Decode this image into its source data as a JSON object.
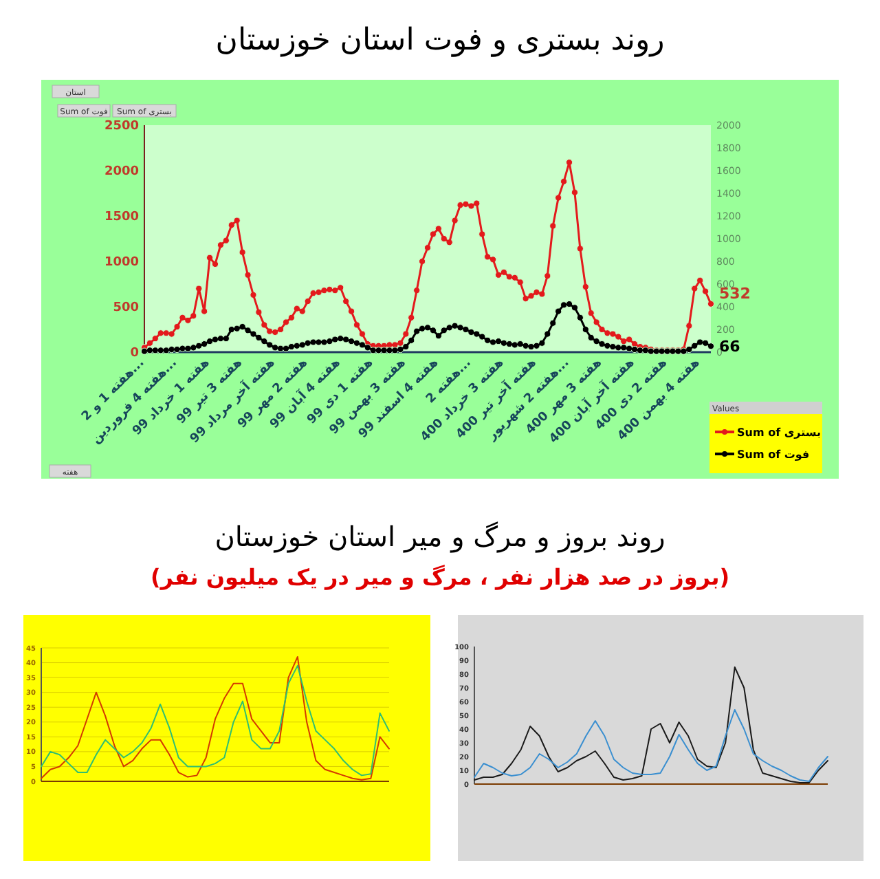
{
  "chart_data": [
    {
      "type": "line",
      "title": "روند بستری و فوت استان خوزستان",
      "categories": [
        "هفته 1 و 2...",
        null,
        null,
        null,
        null,
        null,
        "هفته 4 فروردین...",
        null,
        null,
        null,
        null,
        null,
        "هفته 1 خرداد 99",
        null,
        null,
        null,
        null,
        null,
        "هفته 3 تیر 99",
        null,
        null,
        null,
        null,
        null,
        "هفته آخر مرداد 99",
        null,
        null,
        null,
        null,
        null,
        "هفته 2 مهر 99",
        null,
        null,
        null,
        null,
        null,
        "هفته 4 آبان 99",
        null,
        null,
        null,
        null,
        null,
        "هفته 1 دی 99",
        null,
        null,
        null,
        null,
        null,
        "هفته 3 بهمن 99",
        null,
        null,
        null,
        null,
        null,
        "هفته 4 اسفند 99",
        null,
        null,
        null,
        null,
        null,
        "هفته 2...",
        null,
        null,
        null,
        null,
        null,
        "هفته 3 خرداد 400",
        null,
        null,
        null,
        null,
        null,
        "هفته آخر تیر 400",
        null,
        null,
        null,
        null,
        null,
        "هفته 2 شهریور...",
        null,
        null,
        null,
        null,
        null,
        "هفته 3 مهر 400",
        null,
        null,
        null,
        null,
        null,
        "هفته آخر آبان 400",
        null,
        null,
        null,
        null,
        null,
        "هفته 2 دی 400",
        null,
        null,
        null,
        null,
        null,
        "هفته 4 بهمن 400",
        null,
        null
      ],
      "series": [
        {
          "name": "Sum of بستری",
          "color": "#e31a1c",
          "values": [
            50,
            100,
            150,
            210,
            210,
            200,
            280,
            380,
            350,
            400,
            700,
            450,
            1040,
            970,
            1180,
            1230,
            1400,
            1450,
            1100,
            850,
            630,
            440,
            300,
            230,
            220,
            250,
            330,
            380,
            480,
            450,
            560,
            650,
            660,
            680,
            690,
            680,
            710,
            560,
            450,
            300,
            200,
            90,
            70,
            70,
            70,
            80,
            80,
            100,
            200,
            380,
            680,
            1000,
            1150,
            1300,
            1360,
            1250,
            1210,
            1450,
            1620,
            1630,
            1610,
            1640,
            1300,
            1050,
            1020,
            850,
            880,
            830,
            820,
            770,
            590,
            620,
            660,
            640,
            840,
            1390,
            1700,
            1880,
            2090,
            1760,
            1140,
            720,
            430,
            330,
            250,
            210,
            200,
            170,
            120,
            140,
            90,
            60,
            50,
            30,
            20,
            20,
            20,
            20,
            20,
            30,
            290,
            700,
            790,
            670,
            532
          ],
          "value_labels": [
            null,
            null,
            null,
            null,
            null,
            null,
            null,
            null,
            null,
            null,
            null,
            null,
            null,
            null,
            null,
            null,
            null,
            null,
            null,
            null,
            null,
            null,
            null,
            null,
            null,
            null,
            null,
            null,
            null,
            null,
            null,
            null,
            null,
            null,
            null,
            null,
            null,
            null,
            null,
            null,
            null,
            null,
            null,
            null,
            null,
            null,
            null,
            null,
            null,
            null,
            null,
            null,
            null,
            null,
            null,
            null,
            null,
            null,
            null,
            null,
            null,
            null,
            null,
            null,
            null,
            null,
            null,
            null,
            null,
            null,
            null,
            null,
            null,
            null,
            null,
            null,
            null,
            null,
            null,
            null,
            null,
            null,
            null,
            null,
            null,
            null,
            null,
            null,
            null,
            null,
            null,
            null,
            null,
            null,
            null,
            null,
            null,
            null,
            null,
            null,
            null,
            null,
            null,
            null,
            "532"
          ]
        },
        {
          "name": "Sum of فوت",
          "color": "#000000",
          "values": [
            10,
            20,
            20,
            20,
            20,
            30,
            30,
            40,
            40,
            50,
            70,
            90,
            120,
            140,
            150,
            150,
            250,
            260,
            280,
            240,
            200,
            160,
            120,
            80,
            50,
            40,
            40,
            60,
            70,
            80,
            100,
            110,
            110,
            110,
            120,
            140,
            150,
            140,
            120,
            100,
            80,
            50,
            20,
            20,
            20,
            20,
            20,
            30,
            60,
            130,
            230,
            260,
            270,
            240,
            180,
            240,
            270,
            290,
            270,
            250,
            220,
            200,
            170,
            130,
            110,
            120,
            100,
            90,
            80,
            90,
            70,
            60,
            70,
            100,
            200,
            320,
            450,
            520,
            530,
            490,
            380,
            250,
            160,
            120,
            90,
            70,
            60,
            50,
            50,
            40,
            30,
            20,
            20,
            10,
            10,
            10,
            10,
            10,
            10,
            10,
            30,
            70,
            110,
            100,
            66
          ],
          "value_labels": [
            null,
            null,
            null,
            null,
            null,
            null,
            null,
            null,
            null,
            null,
            null,
            null,
            null,
            null,
            null,
            null,
            null,
            null,
            null,
            null,
            null,
            null,
            null,
            null,
            null,
            null,
            null,
            null,
            null,
            null,
            null,
            null,
            null,
            null,
            null,
            null,
            null,
            null,
            null,
            null,
            null,
            null,
            null,
            null,
            null,
            null,
            null,
            null,
            null,
            null,
            null,
            null,
            null,
            null,
            null,
            null,
            null,
            null,
            null,
            null,
            null,
            null,
            null,
            null,
            null,
            null,
            null,
            null,
            null,
            null,
            null,
            null,
            null,
            null,
            null,
            null,
            null,
            null,
            null,
            null,
            null,
            null,
            null,
            null,
            null,
            null,
            null,
            null,
            null,
            null,
            null,
            null,
            null,
            null,
            null,
            null,
            null,
            null,
            null,
            null,
            null,
            null,
            null,
            null,
            "66"
          ]
        }
      ],
      "ylim": [
        0,
        2500
      ],
      "yticks": [
        0,
        500,
        1000,
        1500,
        2000,
        2500
      ],
      "y2lim": [
        0,
        2000
      ],
      "y2ticks": [
        0,
        200,
        400,
        600,
        800,
        1000,
        1200,
        1400,
        1600,
        1800,
        2000
      ],
      "legend": "bottom right",
      "legend_title": "Values",
      "marker": "circle",
      "annotations": [
        "استان",
        "Sum of فوت",
        "Sum of بستری",
        "هفته"
      ]
    },
    {
      "type": "line",
      "title": "روند بروز و مرگ و میر استان خوزستان",
      "subtitle": "(بروز در صد هزار نفر ، مرگ و میر در یک میلیون نفر)",
      "categories": [
        null,
        null,
        null,
        null,
        null,
        null,
        null,
        null,
        null,
        null,
        null,
        null,
        null,
        null,
        null,
        null,
        null,
        null,
        null,
        null,
        null,
        null,
        null,
        null,
        null,
        null,
        null,
        null,
        null,
        null,
        null,
        null,
        null,
        null,
        null,
        null,
        null,
        null,
        null
      ],
      "series": [
        {
          "color": "#d43a00",
          "values": [
            1,
            4,
            5,
            8,
            12,
            21,
            30,
            22,
            12,
            5,
            7,
            11,
            14,
            14,
            9,
            3,
            1.5,
            2,
            8,
            21,
            28,
            33,
            33,
            21,
            17,
            13,
            13,
            35,
            42,
            20,
            7,
            4,
            3,
            2,
            1,
            0.5,
            1,
            15,
            11
          ]
        },
        {
          "color": "#2fbf71",
          "values": [
            5,
            10,
            9,
            6,
            3,
            3,
            9,
            14,
            11,
            8,
            10,
            13,
            18,
            26,
            18,
            8,
            5,
            5,
            5,
            6,
            8,
            20,
            27,
            14,
            11,
            11,
            17,
            33,
            39,
            27,
            17,
            14,
            11,
            7,
            4,
            2,
            2.5,
            23,
            17
          ]
        }
      ],
      "ylim": [
        0,
        45
      ],
      "yticks": [
        0,
        5,
        10,
        15,
        20,
        25,
        30,
        35,
        40,
        45
      ],
      "grid": true
    },
    {
      "type": "line",
      "categories": [
        null,
        null,
        null,
        null,
        null,
        null,
        null,
        null,
        null,
        null,
        null,
        null,
        null,
        null,
        null,
        null,
        null,
        null,
        null,
        null,
        null,
        null,
        null,
        null,
        null,
        null,
        null,
        null,
        null,
        null,
        null,
        null,
        null,
        null,
        null,
        null,
        null,
        null,
        null
      ],
      "series": [
        {
          "color": "#1a1a1a",
          "values": [
            3,
            5,
            5,
            7,
            15,
            25,
            42,
            35,
            20,
            9,
            12,
            17,
            20,
            24,
            15,
            5,
            3,
            4,
            6,
            40,
            44,
            30,
            45,
            35,
            18,
            13,
            12,
            30,
            85,
            70,
            25,
            8,
            6,
            4,
            2,
            1,
            1,
            10,
            17
          ]
        },
        {
          "color": "#3a8fd0",
          "values": [
            5,
            15,
            12,
            8,
            6,
            7,
            12,
            22,
            18,
            12,
            16,
            22,
            35,
            46,
            35,
            18,
            12,
            8,
            7,
            7,
            8,
            20,
            36,
            25,
            15,
            10,
            13,
            35,
            54,
            40,
            22,
            17,
            13,
            10,
            6,
            3,
            2,
            12,
            20
          ]
        }
      ],
      "ylim": [
        0,
        100
      ],
      "yticks": [
        0,
        10,
        20,
        30,
        40,
        50,
        60,
        70,
        80,
        90,
        100
      ]
    }
  ]
}
